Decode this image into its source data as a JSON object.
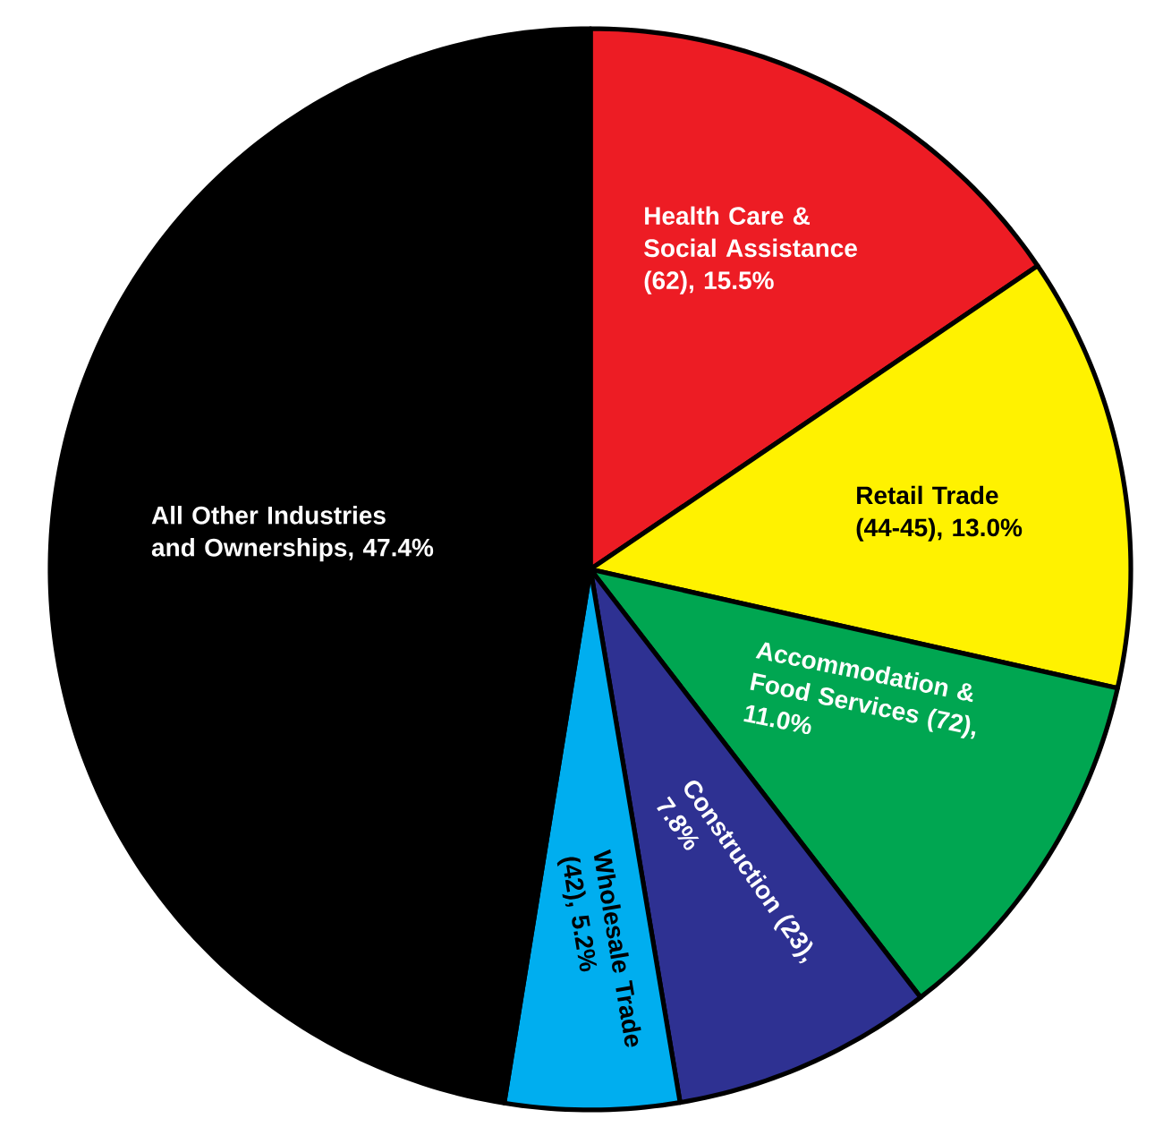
{
  "chart_data": {
    "type": "pie",
    "categories": [
      "Health Care & Social Assistance (62), 15.5%",
      "Retail Trade (44-45), 13.0%",
      "Accommodation & Food Services (72), 11.0%",
      "Construction (23), 7.8%",
      "Wholesale Trade (42), 5.2%",
      "All Other Industries and Ownerships, 47.4%"
    ],
    "values": [
      15.5,
      13.0,
      11.0,
      7.8,
      5.2,
      47.4
    ],
    "colors": [
      "#ed1c24",
      "#fff200",
      "#00a651",
      "#2e3192",
      "#00aeef",
      "#000000"
    ]
  }
}
